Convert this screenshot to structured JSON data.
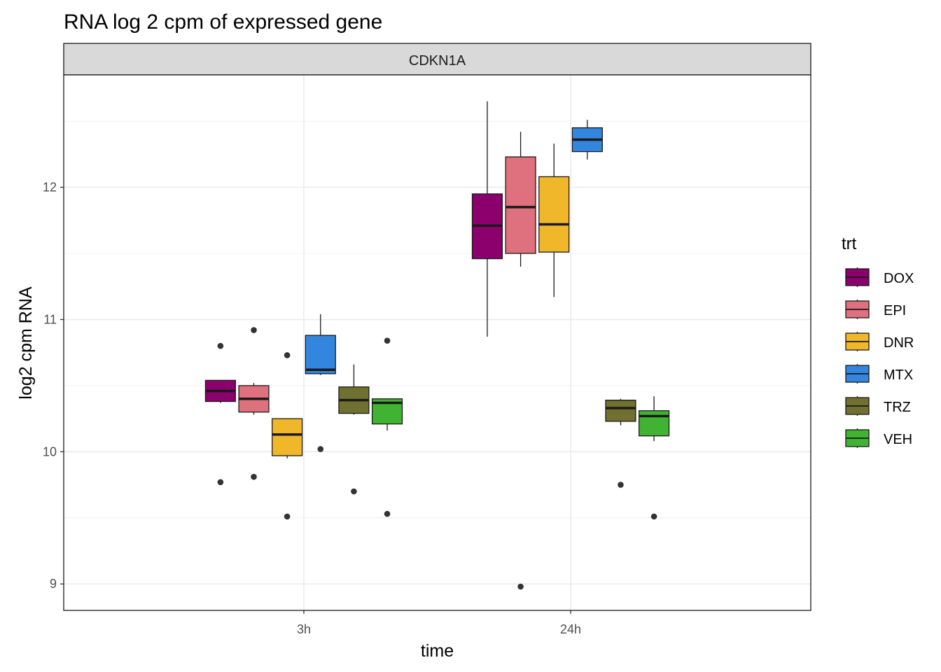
{
  "chart_data": {
    "type": "boxplot",
    "title": "RNA log 2 cpm of expressed gene",
    "facet": "CDKN1A",
    "xlabel": "time",
    "ylabel": "log2 cpm RNA",
    "categories": [
      "3h",
      "24h"
    ],
    "ylim": [
      8.8,
      12.85
    ],
    "yticks": [
      9,
      10,
      11,
      12
    ],
    "grid": true,
    "legend": {
      "title": "trt",
      "position": "right"
    },
    "series": [
      {
        "name": "DOX",
        "color": "#8B006D",
        "boxes": [
          {
            "time": "3h",
            "lower": 10.37,
            "q1": 10.38,
            "median": 10.46,
            "q3": 10.54,
            "upper": 10.54,
            "outliers": [
              10.8,
              9.77
            ]
          },
          {
            "time": "24h",
            "lower": 10.87,
            "q1": 11.46,
            "median": 11.71,
            "q3": 11.95,
            "upper": 12.65,
            "outliers": []
          }
        ]
      },
      {
        "name": "EPI",
        "color": "#DF707E",
        "boxes": [
          {
            "time": "3h",
            "lower": 10.28,
            "q1": 10.3,
            "median": 10.4,
            "q3": 10.5,
            "upper": 10.52,
            "outliers": [
              10.92,
              9.81
            ]
          },
          {
            "time": "24h",
            "lower": 11.4,
            "q1": 11.5,
            "median": 11.85,
            "q3": 12.23,
            "upper": 12.42,
            "outliers": [
              8.98
            ]
          }
        ]
      },
      {
        "name": "DNR",
        "color": "#F1B72B",
        "boxes": [
          {
            "time": "3h",
            "lower": 9.95,
            "q1": 9.97,
            "median": 10.13,
            "q3": 10.25,
            "upper": 10.25,
            "outliers": [
              10.73,
              9.51
            ]
          },
          {
            "time": "24h",
            "lower": 11.17,
            "q1": 11.51,
            "median": 11.72,
            "q3": 12.08,
            "upper": 12.33,
            "outliers": []
          }
        ]
      },
      {
        "name": "MTX",
        "color": "#3386DD",
        "boxes": [
          {
            "time": "3h",
            "lower": 10.58,
            "q1": 10.59,
            "median": 10.62,
            "q3": 10.88,
            "upper": 11.04,
            "outliers": [
              10.02
            ]
          },
          {
            "time": "24h",
            "lower": 12.21,
            "q1": 12.27,
            "median": 12.36,
            "q3": 12.45,
            "upper": 12.51,
            "outliers": []
          }
        ]
      },
      {
        "name": "TRZ",
        "color": "#707031",
        "boxes": [
          {
            "time": "3h",
            "lower": 10.28,
            "q1": 10.29,
            "median": 10.39,
            "q3": 10.49,
            "upper": 10.66,
            "outliers": [
              9.7
            ]
          },
          {
            "time": "24h",
            "lower": 10.2,
            "q1": 10.23,
            "median": 10.33,
            "q3": 10.39,
            "upper": 10.4,
            "outliers": [
              9.75
            ]
          }
        ]
      },
      {
        "name": "VEH",
        "color": "#41B333",
        "boxes": [
          {
            "time": "3h",
            "lower": 10.16,
            "q1": 10.21,
            "median": 10.37,
            "q3": 10.4,
            "upper": 10.4,
            "outliers": [
              10.84,
              9.53
            ]
          },
          {
            "time": "24h",
            "lower": 10.08,
            "q1": 10.12,
            "median": 10.27,
            "q3": 10.31,
            "upper": 10.42,
            "outliers": [
              9.51
            ]
          }
        ]
      }
    ]
  }
}
